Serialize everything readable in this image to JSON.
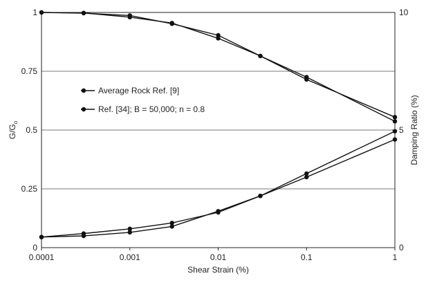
{
  "chart_data": {
    "type": "line",
    "title": "",
    "xlabel": "Shear Strain (%)",
    "ylabel": "G/G",
    "ylabel_sub": "o",
    "y2label": "Damping Ratio (%)",
    "x_scale": "log",
    "xlim": [
      0.0001,
      1
    ],
    "ylim": [
      0,
      1
    ],
    "y2lim": [
      0,
      10
    ],
    "x_ticks": [
      "0.0001",
      "0.001",
      "0.01",
      "0.1",
      "1"
    ],
    "y_ticks": [
      "0",
      "0.25",
      "0.5",
      "0.75",
      "1"
    ],
    "y2_ticks": [
      "0",
      "5",
      "10"
    ],
    "grid": "horizontal",
    "legend_position": "center-left",
    "series": [
      {
        "name": "Average Rock Ref. [9]",
        "axis": "left",
        "curve": "modulus",
        "x": [
          0.0001,
          0.0003,
          0.001,
          0.003,
          0.01,
          0.03,
          0.1,
          1
        ],
        "y": [
          1.0,
          0.997,
          0.987,
          0.952,
          0.903,
          0.815,
          0.725,
          0.537
        ]
      },
      {
        "name": "Ref. [34]; B = 50,000; n = 0.8",
        "axis": "left",
        "curve": "modulus",
        "x": [
          0.0001,
          0.0003,
          0.001,
          0.003,
          0.01,
          0.03,
          0.1,
          1
        ],
        "y": [
          1.0,
          0.998,
          0.98,
          0.955,
          0.89,
          0.815,
          0.715,
          0.555
        ]
      },
      {
        "name": "Average Rock Ref. [9]",
        "axis": "right",
        "curve": "damping",
        "x": [
          0.0001,
          0.0003,
          0.001,
          0.003,
          0.01,
          0.03,
          0.1,
          1
        ],
        "y": [
          0.45,
          0.5,
          0.65,
          0.9,
          1.55,
          2.2,
          3.15,
          4.95
        ]
      },
      {
        "name": "Ref. [34]; B = 50,000; n = 0.8",
        "axis": "right",
        "curve": "damping",
        "x": [
          0.0001,
          0.0003,
          0.001,
          0.003,
          0.01,
          0.03,
          0.1,
          1
        ],
        "y": [
          0.45,
          0.6,
          0.8,
          1.05,
          1.5,
          2.2,
          3.0,
          4.6
        ]
      }
    ]
  }
}
